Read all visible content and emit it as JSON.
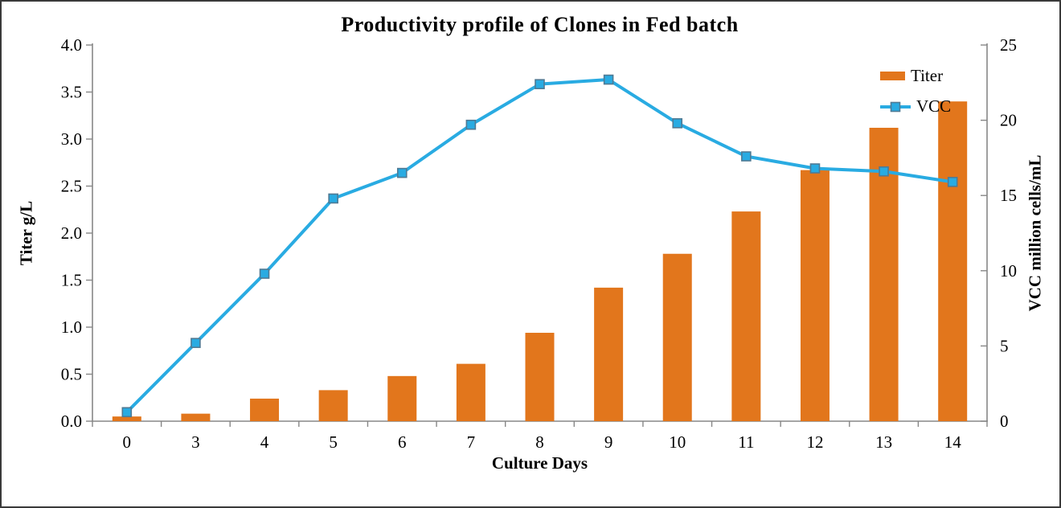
{
  "chart_data": {
    "type": "bar",
    "subtype": "combo-bar-line-dual-axis",
    "title": "Productivity profile of Clones in Fed batch",
    "xlabel": "Culture Days",
    "categories": [
      "0",
      "3",
      "4",
      "5",
      "6",
      "7",
      "8",
      "9",
      "10",
      "11",
      "12",
      "13",
      "14"
    ],
    "left_axis": {
      "label": "Titer g/L",
      "min": 0.0,
      "max": 4.0,
      "step": 0.5,
      "ticks": [
        "0.0",
        "0.5",
        "1.0",
        "1.5",
        "2.0",
        "2.5",
        "3.0",
        "3.5",
        "4.0"
      ]
    },
    "right_axis": {
      "label": "VCC million cells/mL",
      "min": 0,
      "max": 25,
      "step": 5,
      "ticks": [
        "0",
        "5",
        "10",
        "15",
        "20",
        "25"
      ]
    },
    "series": [
      {
        "name": "Titer",
        "type": "bar",
        "axis": "left",
        "color": "#E2761C",
        "values": [
          0.05,
          0.08,
          0.24,
          0.33,
          0.48,
          0.61,
          0.94,
          1.42,
          1.78,
          2.23,
          2.67,
          3.12,
          3.4
        ]
      },
      {
        "name": "VCC",
        "type": "line",
        "axis": "right",
        "color": "#29ABE2",
        "marker": "square",
        "marker_border_color": "#4F7A94",
        "values": [
          0.6,
          5.2,
          9.8,
          14.8,
          16.5,
          19.7,
          22.4,
          22.7,
          19.8,
          17.6,
          16.8,
          16.6,
          15.9
        ]
      }
    ],
    "legend": {
      "position": "top-right",
      "entries": [
        "Titer",
        "VCC"
      ]
    },
    "grid": false,
    "axis_line_color": "#878787"
  }
}
